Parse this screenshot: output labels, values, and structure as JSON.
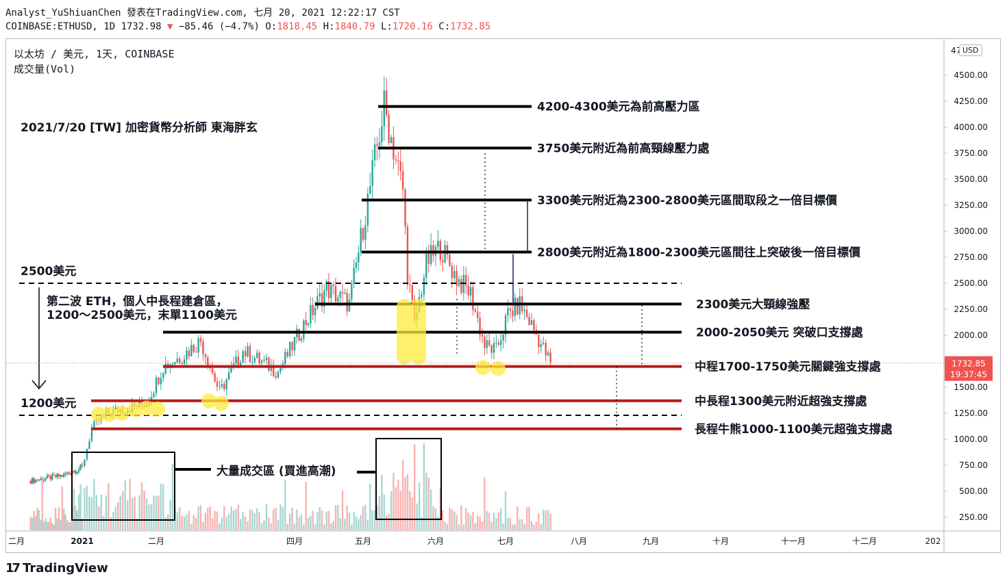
{
  "header": {
    "line1": "Analyst_YuShiuanChen 發表在TradingView.com, 七月 20, 2021 12:22:17 CST",
    "symbol": "COINBASE:ETHUSD, 1D 1732.98",
    "arrow": "▼",
    "change": "−85.46 (−4.7%)",
    "o_label": "O:",
    "o_value": "1818.45",
    "h_label": "H:",
    "h_value": "1840.79",
    "l_label": "L:",
    "l_value": "1720.16",
    "c_label": "C:",
    "c_value": "1732.85"
  },
  "legend": {
    "title": "以太坊 / 美元, 1天, COINBASE",
    "volume": "成交量(Vol)"
  },
  "currency_button": "USD",
  "price_axis_top_partial": "47",
  "brand": {
    "icon": "17",
    "name": "TradingView"
  },
  "colors": {
    "up": "#26a69a",
    "down": "#ef5350",
    "vol_up": "#a6d7d2",
    "vol_down": "#f7b2b0",
    "black_line": "#000000",
    "red_line": "#b71c1c",
    "highlight": "#ffeb3b",
    "price_tag": "#ef5350",
    "navy": "#1a1a7a"
  },
  "chart_data": {
    "type": "candlestick",
    "title": "以太坊 / 美元, 1天, COINBASE",
    "y_axis": {
      "ticks": [
        "4500.00",
        "4250.00",
        "4000.00",
        "3750.00",
        "3500.00",
        "3250.00",
        "3000.00",
        "2750.00",
        "2500.00",
        "2250.00",
        "2000.00",
        "1750.00",
        "1500.00",
        "1250.00",
        "1000.00",
        "750.00",
        "500.00",
        "250.00"
      ],
      "ylim": [
        200,
        4700
      ]
    },
    "x_axis": {
      "ticks": [
        "二月",
        "2021",
        "二月",
        "四月",
        "五月",
        "六月",
        "七月",
        "八月",
        "九月",
        "十月",
        "十一月",
        "十二月",
        "202"
      ]
    },
    "last_price": "1732.85",
    "countdown": "19:37:45",
    "price_path": [
      {
        "date": "2020-12-01",
        "price": 600
      },
      {
        "date": "2020-12-20",
        "price": 650
      },
      {
        "date": "2021-01-01",
        "price": 730
      },
      {
        "date": "2021-01-05",
        "price": 1100
      },
      {
        "date": "2021-01-11",
        "price": 1250
      },
      {
        "date": "2021-01-20",
        "price": 1300
      },
      {
        "date": "2021-01-28",
        "price": 1350
      },
      {
        "date": "2021-02-04",
        "price": 1700
      },
      {
        "date": "2021-02-12",
        "price": 1800
      },
      {
        "date": "2021-02-20",
        "price": 1950
      },
      {
        "date": "2021-02-28",
        "price": 1450
      },
      {
        "date": "2021-03-10",
        "price": 1850
      },
      {
        "date": "2021-03-25",
        "price": 1650
      },
      {
        "date": "2021-04-05",
        "price": 2100
      },
      {
        "date": "2021-04-15",
        "price": 2450
      },
      {
        "date": "2021-04-25",
        "price": 2300
      },
      {
        "date": "2021-05-03",
        "price": 3300
      },
      {
        "date": "2021-05-10",
        "price": 4200
      },
      {
        "date": "2021-05-12",
        "price": 4000
      },
      {
        "date": "2021-05-18",
        "price": 3400
      },
      {
        "date": "2021-05-20",
        "price": 2600
      },
      {
        "date": "2021-05-23",
        "price": 2100
      },
      {
        "date": "2021-05-28",
        "price": 2700
      },
      {
        "date": "2021-06-03",
        "price": 2850
      },
      {
        "date": "2021-06-10",
        "price": 2550
      },
      {
        "date": "2021-06-16",
        "price": 2400
      },
      {
        "date": "2021-06-22",
        "price": 1900
      },
      {
        "date": "2021-06-27",
        "price": 1850
      },
      {
        "date": "2021-07-02",
        "price": 2200
      },
      {
        "date": "2021-07-07",
        "price": 2300
      },
      {
        "date": "2021-07-12",
        "price": 2100
      },
      {
        "date": "2021-07-20",
        "price": 1733
      }
    ],
    "levels": [
      {
        "price": 4200,
        "style": "black",
        "label": "4200-4300美元為前高壓力區"
      },
      {
        "price": 3800,
        "style": "black",
        "label": "3750美元附近為前高頸線壓力處"
      },
      {
        "price": 3300,
        "style": "black",
        "label": "3300美元附近為2300-2800美元區間取段之一倍目標價"
      },
      {
        "price": 2800,
        "style": "black",
        "label": "2800美元附近為1800-2300美元區間往上突破後一倍目標價"
      },
      {
        "price": 2300,
        "style": "black",
        "label": "2300美元大頸線強壓"
      },
      {
        "price": 2030,
        "style": "black",
        "label": "2000-2050美元 突破口支撐處"
      },
      {
        "price": 1700,
        "style": "red",
        "label": "中程1700-1750美元關鍵強支撐處"
      },
      {
        "price": 1370,
        "style": "red",
        "label": "中長程1300美元附近超強支撐處"
      },
      {
        "price": 1100,
        "style": "red",
        "label": "長程牛熊1000-1100美元超強支撐處"
      }
    ],
    "dashed_levels": [
      {
        "price": 2500,
        "label": "2500美元"
      },
      {
        "price": 1230,
        "label": "1200美元"
      }
    ],
    "annotations": {
      "author_note": "2021/7/20 [TW] 加密貨幣分析師 東海胖玄",
      "zone_line1": "第二波 ETH，個人中長程建倉區，",
      "zone_line2": "1200～2500美元，末單1100美元",
      "volume_note": "大量成交區 (買進高潮)"
    }
  }
}
